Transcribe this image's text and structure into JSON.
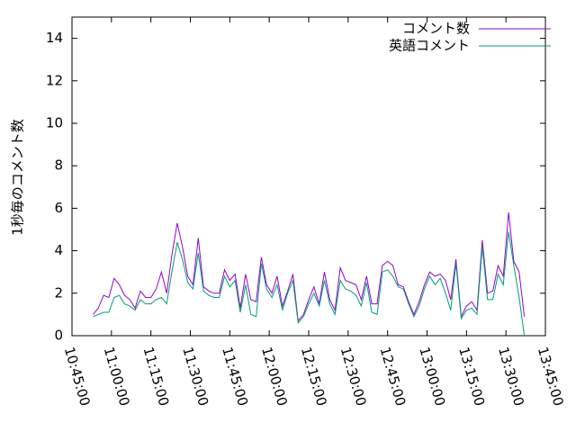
{
  "chart_data": {
    "type": "line",
    "ylabel": "1秒毎のコメント数",
    "x": [
      "10:53:00",
      "10:55:00",
      "10:57:00",
      "10:59:00",
      "11:01:00",
      "11:03:00",
      "11:05:00",
      "11:07:00",
      "11:09:00",
      "11:11:00",
      "11:13:00",
      "11:15:00",
      "11:17:00",
      "11:19:00",
      "11:21:00",
      "11:23:00",
      "11:25:00",
      "11:27:00",
      "11:29:00",
      "11:31:00",
      "11:33:00",
      "11:35:00",
      "11:37:00",
      "11:39:00",
      "11:41:00",
      "11:43:00",
      "11:45:00",
      "11:47:00",
      "11:49:00",
      "11:51:00",
      "11:53:00",
      "11:55:00",
      "11:57:00",
      "11:59:00",
      "12:01:00",
      "12:03:00",
      "12:05:00",
      "12:07:00",
      "12:09:00",
      "12:11:00",
      "12:13:00",
      "12:15:00",
      "12:17:00",
      "12:19:00",
      "12:21:00",
      "12:23:00",
      "12:25:00",
      "12:27:00",
      "12:29:00",
      "12:31:00",
      "12:33:00",
      "12:35:00",
      "12:37:00",
      "12:39:00",
      "12:41:00",
      "12:43:00",
      "12:45:00",
      "12:47:00",
      "12:49:00",
      "12:51:00",
      "12:53:00",
      "12:55:00",
      "12:57:00",
      "12:59:00",
      "13:01:00",
      "13:03:00",
      "13:05:00",
      "13:07:00",
      "13:09:00",
      "13:11:00",
      "13:13:00",
      "13:15:00",
      "13:17:00",
      "13:19:00",
      "13:21:00",
      "13:23:00",
      "13:25:00",
      "13:27:00",
      "13:29:00",
      "13:31:00",
      "13:33:00",
      "13:35:00",
      "13:37:00"
    ],
    "series": [
      {
        "name": "コメント数",
        "color": "#9400d3",
        "values": [
          1.0,
          1.3,
          1.9,
          1.8,
          2.7,
          2.4,
          1.9,
          1.7,
          1.3,
          2.1,
          1.8,
          1.8,
          2.2,
          3.0,
          2.0,
          3.8,
          5.3,
          4.2,
          2.8,
          2.4,
          4.6,
          2.3,
          2.1,
          2.0,
          2.0,
          3.1,
          2.6,
          2.9,
          1.3,
          2.9,
          1.7,
          1.6,
          3.7,
          2.4,
          2.0,
          2.8,
          1.4,
          2.1,
          2.9,
          0.7,
          1.0,
          1.7,
          2.3,
          1.5,
          3.0,
          1.7,
          1.2,
          3.2,
          2.6,
          2.5,
          2.4,
          1.7,
          2.8,
          1.5,
          1.5,
          3.3,
          3.5,
          3.3,
          2.4,
          2.3,
          1.6,
          1.0,
          1.6,
          2.4,
          3.0,
          2.8,
          2.9,
          2.6,
          1.7,
          3.6,
          0.9,
          1.4,
          1.6,
          1.2,
          4.5,
          2.0,
          2.1,
          3.3,
          2.8,
          5.8,
          3.5,
          3.0,
          0.9
        ]
      },
      {
        "name": "英語コメント",
        "color": "#009e73",
        "values": [
          0.9,
          1.0,
          1.1,
          1.1,
          1.8,
          1.9,
          1.5,
          1.4,
          1.2,
          1.7,
          1.5,
          1.5,
          1.7,
          1.8,
          1.5,
          3.0,
          4.4,
          3.6,
          2.5,
          2.2,
          3.9,
          2.1,
          1.9,
          1.8,
          1.8,
          2.8,
          2.3,
          2.6,
          1.1,
          2.4,
          1.0,
          0.9,
          3.4,
          2.2,
          1.8,
          2.4,
          1.2,
          2.0,
          2.6,
          0.6,
          0.9,
          1.5,
          2.0,
          1.4,
          2.6,
          1.5,
          1.0,
          2.6,
          2.2,
          2.1,
          1.9,
          1.4,
          2.5,
          1.1,
          1.0,
          3.0,
          3.1,
          2.8,
          2.3,
          2.2,
          1.5,
          0.9,
          1.4,
          2.2,
          2.8,
          2.4,
          2.7,
          2.0,
          1.2,
          3.4,
          0.8,
          1.2,
          1.3,
          1.0,
          4.2,
          1.7,
          1.7,
          2.9,
          2.4,
          4.9,
          3.3,
          1.8,
          0.0
        ]
      }
    ],
    "xlim": [
      "10:45:00",
      "13:45:00"
    ],
    "xticks": [
      "10:45:00",
      "11:00:00",
      "11:15:00",
      "11:30:00",
      "11:45:00",
      "12:00:00",
      "12:15:00",
      "12:30:00",
      "12:45:00",
      "13:00:00",
      "13:15:00",
      "13:30:00",
      "13:45:00"
    ],
    "ylim": [
      0,
      15
    ],
    "yticks": [
      0,
      2,
      4,
      6,
      8,
      10,
      12,
      14
    ],
    "legend": "top-right"
  }
}
